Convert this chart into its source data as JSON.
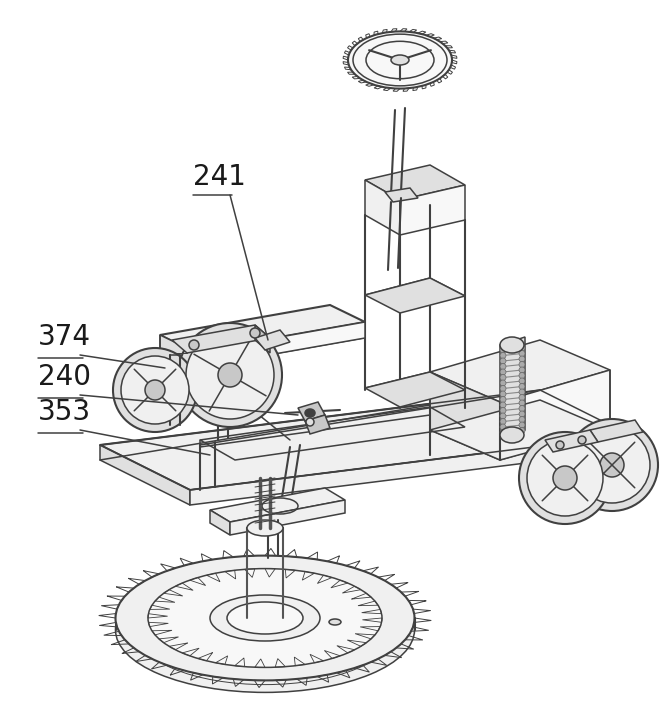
{
  "background_color": "#ffffff",
  "line_color": "#404040",
  "line_color2": "#555555",
  "fill_light": "#f0f0f0",
  "fill_mid": "#e0e0e0",
  "fill_dark": "#c8c8c8",
  "fill_white": "#f8f8f8",
  "lw": 1.1,
  "lw2": 1.5,
  "lw3": 0.7,
  "label_241": "241",
  "label_374": "374",
  "label_240": "240",
  "label_353": "353",
  "label_fs": 20,
  "figsize": [
    6.62,
    7.1
  ],
  "dpi": 100
}
